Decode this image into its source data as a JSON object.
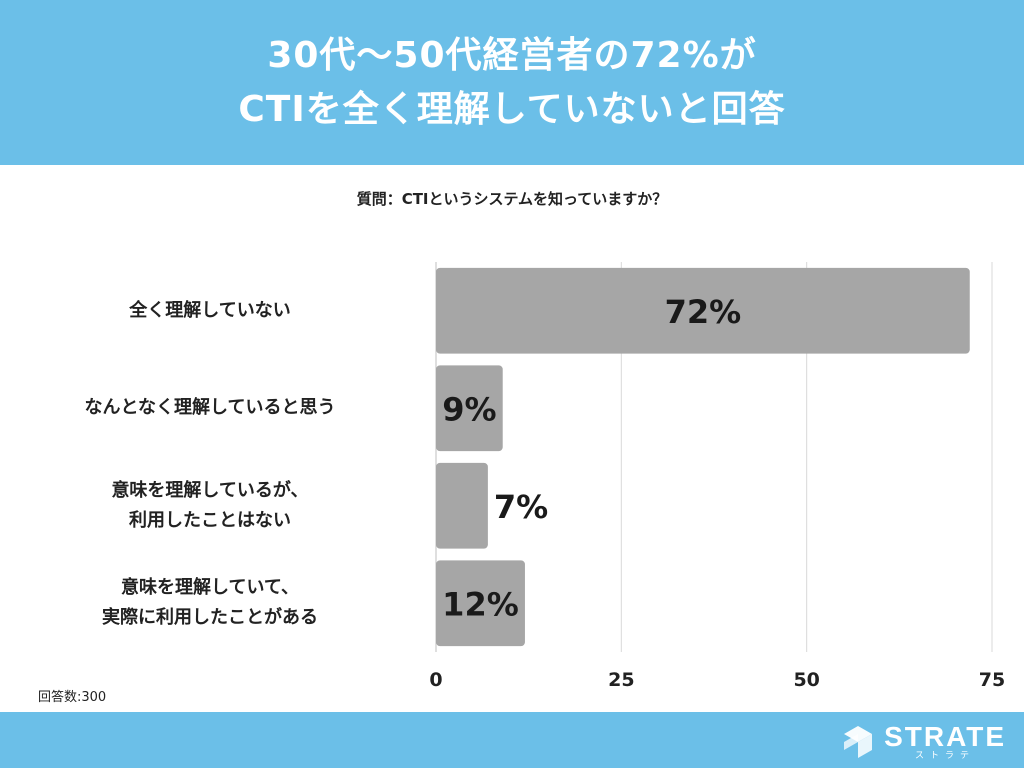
{
  "header": {
    "title_line1": "30代〜50代経営者の72%が",
    "title_line2": "CTIを全く理解していないと回答"
  },
  "question": "質問：CTIというシステムを知っていますか？",
  "note": "回答数:300",
  "logo": {
    "name": "STRATE",
    "sub": "ストラテ",
    "icon": "strate-logo-icon"
  },
  "colors": {
    "header_bg": "#6bbfe8",
    "bar": "#a6a6a6",
    "grid": "#d9d9d9"
  },
  "chart_data": {
    "type": "bar",
    "orientation": "horizontal",
    "categories": [
      [
        "全く理解していない"
      ],
      [
        "なんとなく理解していると思う"
      ],
      [
        "意味を理解しているが、",
        "利用したことはない"
      ],
      [
        "意味を理解していて、",
        "実際に利用したことがある"
      ]
    ],
    "values": [
      72,
      9,
      7,
      12
    ],
    "value_labels": [
      "72%",
      "9%",
      "7%",
      "12%"
    ],
    "xlim": [
      0,
      75
    ],
    "xticks": [
      "0",
      "25",
      "50",
      "75"
    ],
    "grid": true
  }
}
